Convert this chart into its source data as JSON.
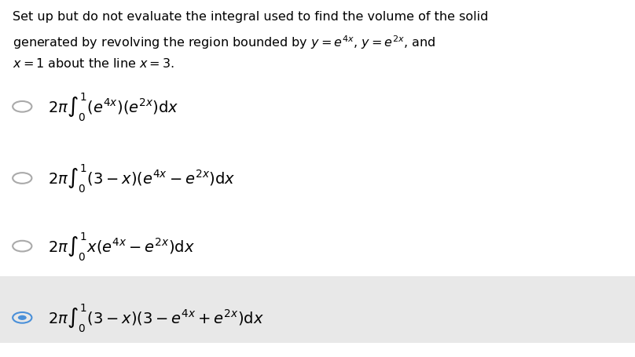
{
  "background_color": "#ffffff",
  "last_option_bg": "#e8e8e8",
  "title_lines": [
    "Set up but do not evaluate the integral used to find the volume of the solid",
    "generated by revolving the region bounded by $y = e^{4x}$, $y = e^{2x}$, and",
    "$x = 1$ about the line $x = 3$."
  ],
  "options": [
    {
      "formula": "$2\\pi \\int_0^1 \\left(e^{4x}\\right)\\left(e^{2x}\\right) \\mathrm{d}x$",
      "selected": false,
      "highlighted": false
    },
    {
      "formula": "$2\\pi \\int_0^1 \\left(3 - x\\right)\\left(e^{4x} - e^{2x}\\right) \\mathrm{d}x$",
      "selected": false,
      "highlighted": false
    },
    {
      "formula": "$2\\pi \\int_0^1 x\\left(e^{4x} - e^{2x}\\right) \\mathrm{d}x$",
      "selected": false,
      "highlighted": false
    },
    {
      "formula": "$2\\pi \\int_0^1 \\left(3 - x\\right)\\left(3 - e^{4x} + e^{2x}\\right) \\mathrm{d}x$",
      "selected": true,
      "highlighted": true
    }
  ],
  "circle_color_unselected": "#aaaaaa",
  "circle_color_selected": "#4a90d9",
  "figsize": [
    8.08,
    4.56
  ],
  "dpi": 100
}
